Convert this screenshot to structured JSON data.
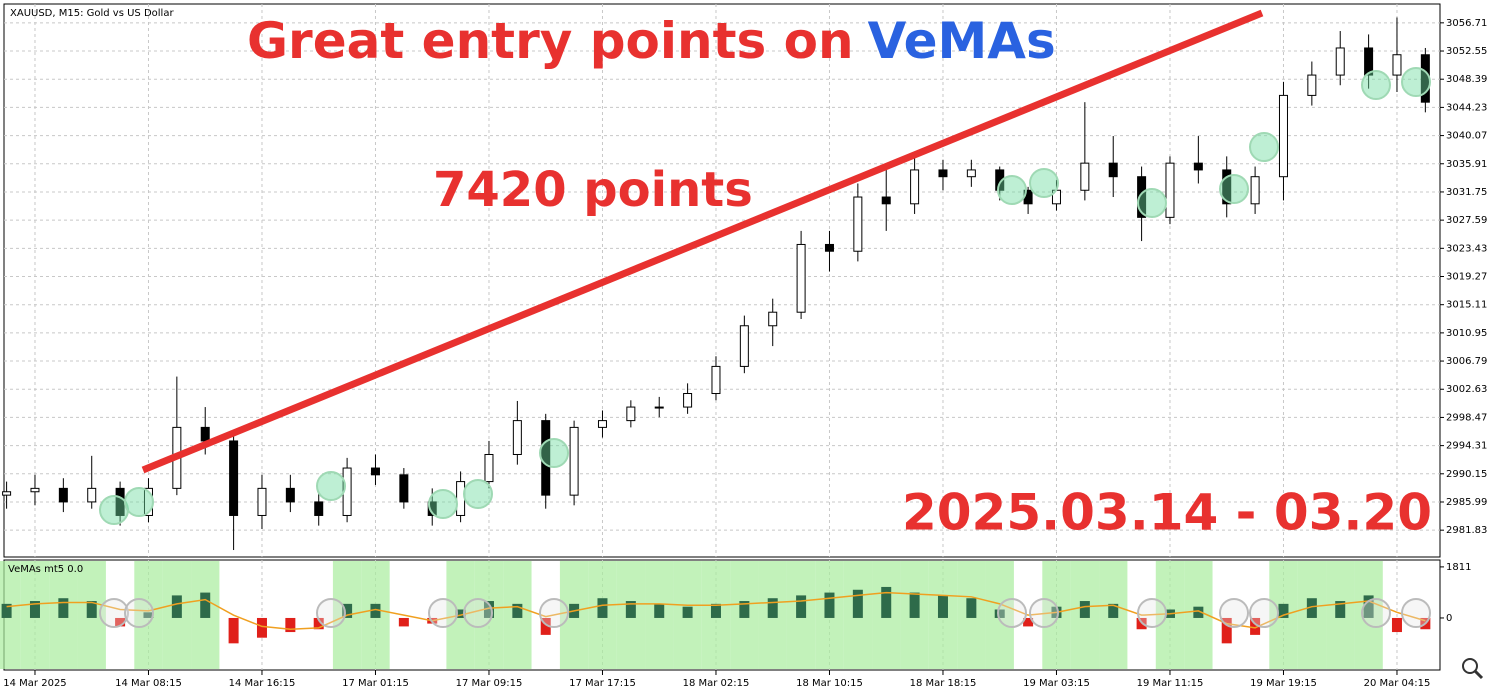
{
  "header": {
    "symbol": "XAUUSD, M15:  Gold vs US Dollar",
    "title_prefix": "Great entry points on",
    "title_highlight": "VeMAs",
    "annotation": "7420 points",
    "date_range": "2025.03.14 - 03.20"
  },
  "chart_data": [
    {
      "type": "candlestick",
      "categories": [
        null,
        "14 Mar 2025",
        null,
        null,
        null,
        "14 Mar 08:15",
        null,
        null,
        null,
        "14 Mar 16:15",
        null,
        null,
        null,
        "17 Mar 01:15",
        null,
        null,
        null,
        "17 Mar 09:15",
        null,
        null,
        null,
        "17 Mar 17:15",
        null,
        null,
        null,
        "18 Mar 02:15",
        null,
        null,
        null,
        "18 Mar 10:15",
        null,
        null,
        null,
        "18 Mar 18:15",
        null,
        null,
        null,
        "19 Mar 03:15",
        null,
        null,
        null,
        "19 Mar 11:15",
        null,
        null,
        null,
        "19 Mar 19:15",
        null,
        null,
        null,
        "20 Mar 04:15",
        null
      ],
      "open": [
        2987,
        2987.5,
        2988,
        2986,
        2988,
        2984,
        2988,
        2997,
        2995,
        2984,
        2988,
        2986,
        2984,
        2991,
        2990,
        2986,
        2984,
        2989,
        2993,
        2998,
        2987,
        2997,
        2998,
        3000,
        3000,
        3002,
        3006,
        3012,
        3014,
        3024,
        3023,
        3031,
        3030,
        3035,
        3034,
        3035,
        3032,
        3030,
        3032,
        3036,
        3034,
        3028,
        3036,
        3035,
        3030,
        3034,
        3046,
        3049,
        3053,
        3049,
        3052
      ],
      "high": [
        2989,
        2990,
        2989.5,
        2992.8,
        2989,
        2989.5,
        3004.5,
        3000,
        2996,
        2990,
        2990,
        2987.5,
        2992.5,
        2993,
        2991,
        2988,
        2990.5,
        2995,
        3000.9,
        2999,
        2998,
        2999.5,
        3001,
        3001.5,
        3003.5,
        3007.5,
        3013.5,
        3016,
        3026,
        3026,
        3033,
        3035,
        3037,
        3036.5,
        3036.5,
        3035.5,
        3032.5,
        3033.5,
        3045,
        3040,
        3035.5,
        3037,
        3040,
        3037,
        3035.5,
        3048,
        3051,
        3055.5,
        3055,
        3057.5,
        3053
      ],
      "low": [
        2985,
        2985.5,
        2984.5,
        2985,
        2982.5,
        2983,
        2987,
        2993,
        2978.9,
        2982,
        2984.5,
        2982.5,
        2983,
        2988.5,
        2985,
        2982.5,
        2983,
        2988,
        2991.5,
        2985,
        2985.5,
        2995.5,
        2997,
        2998.5,
        2999,
        3001,
        3005,
        3009,
        3013,
        3020,
        3021.5,
        3026,
        3028.5,
        3032,
        3032.5,
        3030.5,
        3028.5,
        3029,
        3030.5,
        3031,
        3024.5,
        3027,
        3033,
        3028,
        3028.5,
        3030.5,
        3044.5,
        3047.5,
        3047,
        3046.5,
        3043.5
      ],
      "close": [
        2987.5,
        2988,
        2986,
        2988,
        2984,
        2988,
        2997,
        2995,
        2984,
        2988,
        2986,
        2984,
        2991,
        2990,
        2986,
        2984,
        2989,
        2993,
        2998,
        2987,
        2997,
        2998,
        3000,
        3000,
        3002,
        3006,
        3012,
        3014,
        3024,
        3023,
        3031,
        3030,
        3035,
        3034,
        3035,
        3032,
        3030,
        3032,
        3036,
        3034,
        3028,
        3036,
        3035,
        3030,
        3034,
        3046,
        3049,
        3053,
        3049,
        3052,
        3045
      ],
      "up_color": "#000000",
      "down_color": "#000000",
      "grid": true,
      "ylim": [
        2977.87,
        3059.49
      ],
      "yticks": [
        3056.71,
        3052.55,
        3048.39,
        3044.23,
        3040.07,
        3035.91,
        3031.75,
        3027.59,
        3023.43,
        3019.27,
        3015.11,
        3010.95,
        3006.79,
        3002.63,
        2998.47,
        2994.31,
        2990.15,
        2985.99,
        2981.83
      ]
    },
    {
      "type": "histogram-oscillator",
      "title": "VeMAs mt5 0.0",
      "values": [
        500,
        600,
        700,
        600,
        -300,
        200,
        800,
        900,
        -900,
        -700,
        -500,
        -400,
        500,
        500,
        -300,
        -200,
        300,
        600,
        500,
        -600,
        500,
        700,
        600,
        500,
        400,
        500,
        600,
        700,
        800,
        900,
        1000,
        1100,
        900,
        800,
        700,
        300,
        -300,
        400,
        600,
        500,
        -400,
        300,
        400,
        -900,
        -600,
        500,
        700,
        600,
        800,
        -500,
        -400
      ],
      "signal": [
        400,
        500,
        550,
        550,
        300,
        250,
        500,
        650,
        100,
        -300,
        -400,
        -350,
        100,
        300,
        100,
        -100,
        100,
        350,
        400,
        50,
        250,
        450,
        500,
        500,
        450,
        450,
        500,
        550,
        600,
        700,
        800,
        900,
        850,
        800,
        750,
        500,
        100,
        200,
        400,
        450,
        100,
        150,
        250,
        -200,
        -350,
        100,
        400,
        500,
        600,
        200,
        -100
      ],
      "up_color": "#2e6b4a",
      "down_color": "#e0201a",
      "signal_color": "#f0a020",
      "zone_color": "#a8ec9c",
      "ylim": [
        -1810,
        2020
      ],
      "yticks": [
        1811,
        0
      ]
    }
  ]
}
